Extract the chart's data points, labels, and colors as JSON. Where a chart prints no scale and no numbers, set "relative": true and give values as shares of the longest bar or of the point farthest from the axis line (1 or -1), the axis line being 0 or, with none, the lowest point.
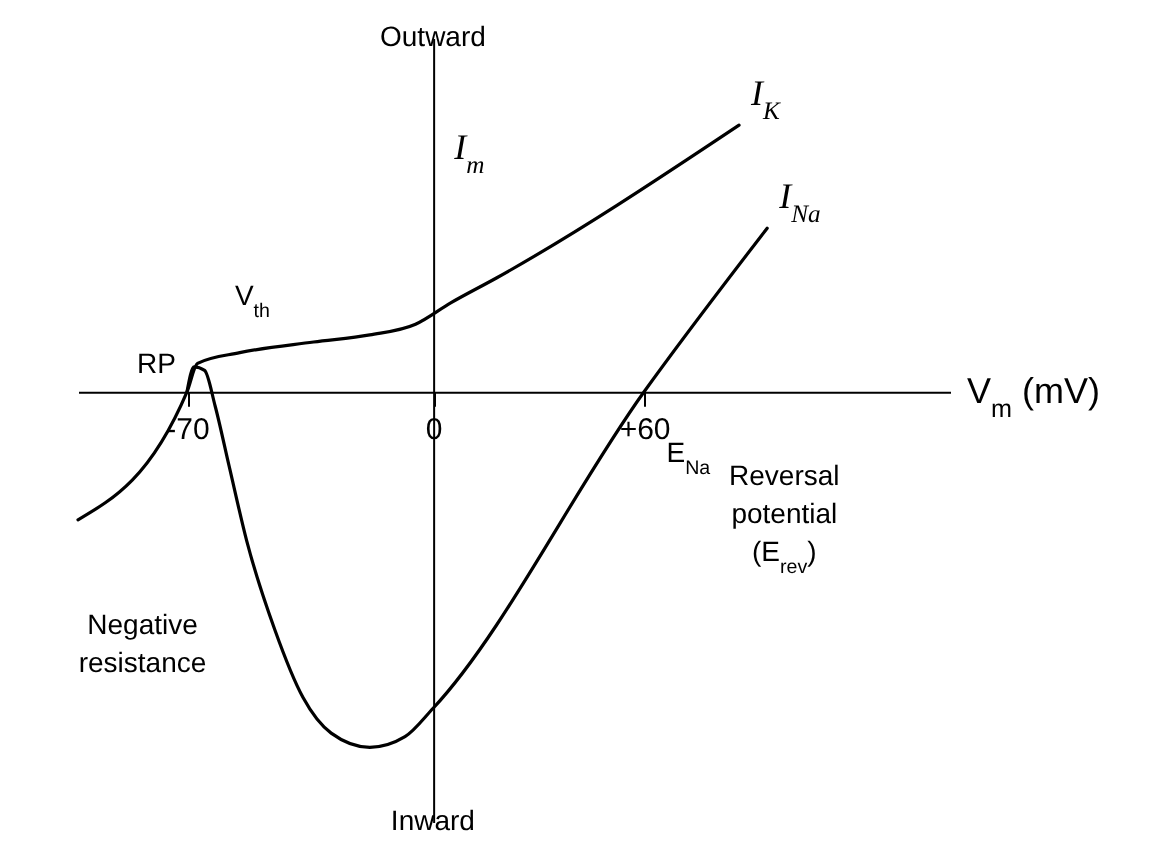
{
  "chart_data": {
    "type": "line",
    "relative": true,
    "xlabel": "V$_{m}$ (mV)",
    "ylabel": "I$_{m}$",
    "xlim": [
      -101,
      147
    ],
    "xticks": [
      -70,
      0,
      {
        "value": 60,
        "label": "+60"
      }
    ],
    "series": [
      {
        "name": "I$_{K}$",
        "color": "#000000",
        "x": [
          -101,
          -70,
          -67,
          -55,
          -34,
          -18,
          -5,
          5,
          18,
          87
        ],
        "values": [
          -0.36,
          0,
          0.08,
          0.11,
          0.14,
          0.16,
          0.19,
          0.25,
          0.32,
          0.75
        ]
      },
      {
        "name": "I$_{Na}$",
        "color": "#000000",
        "x": [
          -70,
          -68,
          -65,
          -62,
          -58,
          -53,
          -45,
          -37,
          -29,
          -18,
          -8,
          0,
          60,
          95
        ],
        "values": [
          0,
          0.07,
          0.06,
          -0.04,
          -0.21,
          -0.42,
          -0.67,
          -0.86,
          -0.96,
          -1,
          -0.97,
          -0.89,
          0,
          0.46
        ]
      }
    ],
    "annotations": [
      "Outward",
      "Inward",
      "RP",
      "V$_{th}$",
      "E$_{Na}$",
      "Negative resistance",
      "Reversal potential (E$_{rev}$)"
    ]
  }
}
